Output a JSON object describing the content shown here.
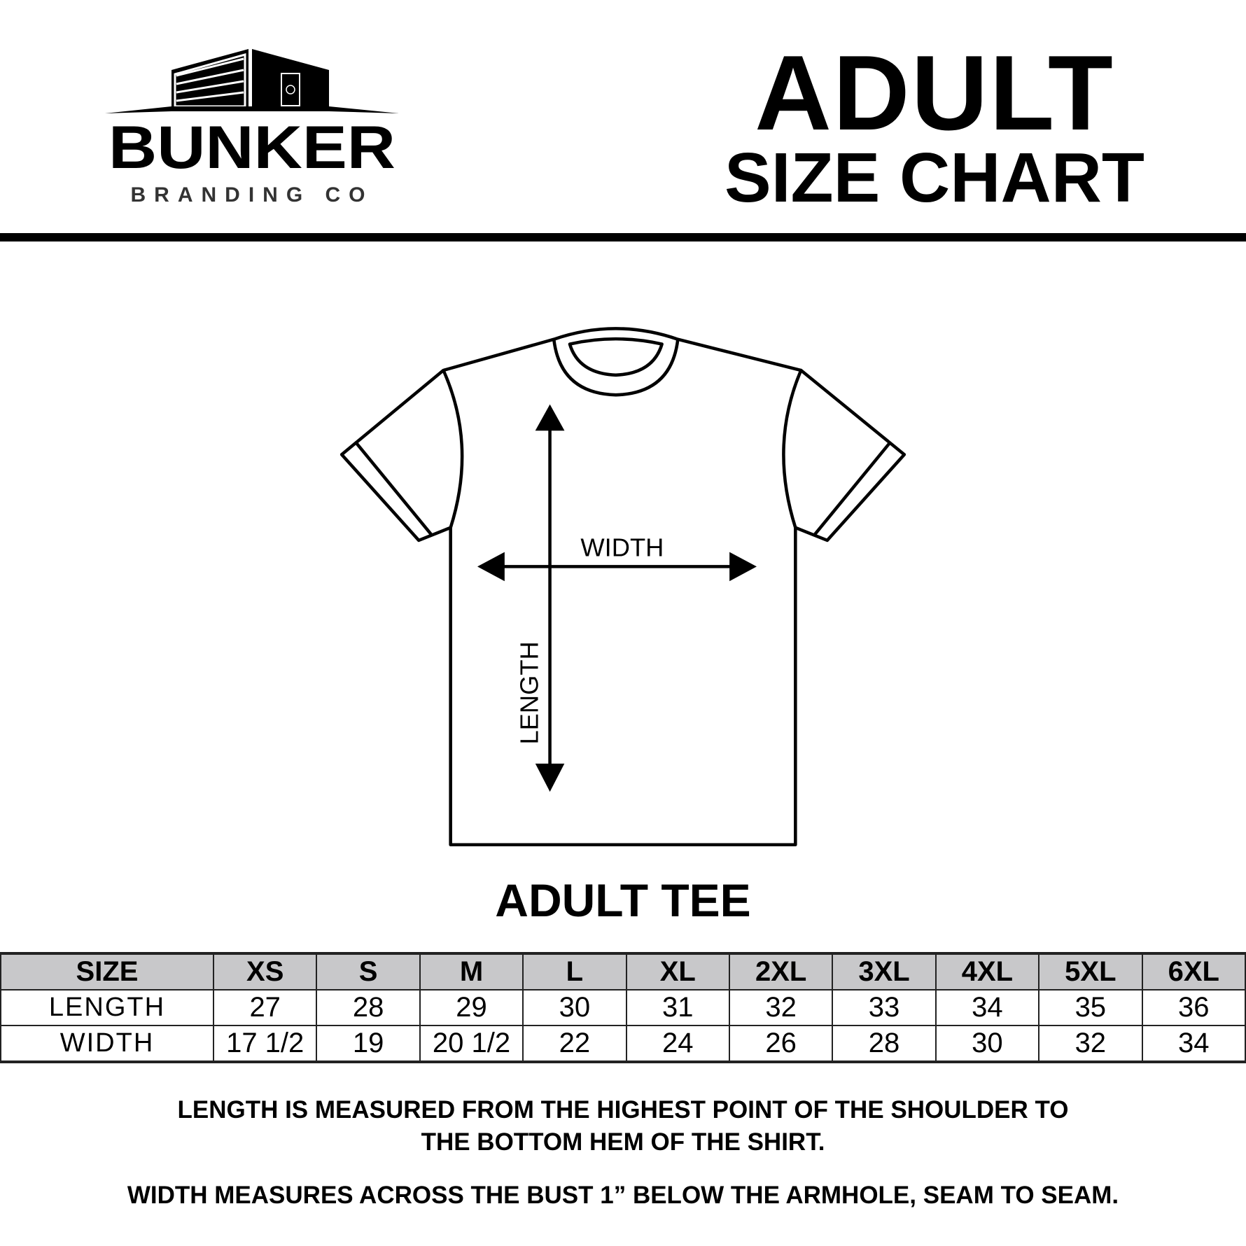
{
  "logo": {
    "brand": "BUNKER",
    "sub": "BRANDING CO"
  },
  "header": {
    "title": "ADULT",
    "subtitle": "SIZE CHART"
  },
  "diagram": {
    "width_label": "WIDTH",
    "length_label": "LENGTH",
    "product": "ADULT TEE"
  },
  "table": {
    "headers": [
      "SIZE",
      "XS",
      "S",
      "M",
      "L",
      "XL",
      "2XL",
      "3XL",
      "4XL",
      "5XL",
      "6XL"
    ],
    "rows": [
      [
        "LENGTH",
        "27",
        "28",
        "29",
        "30",
        "31",
        "32",
        "33",
        "34",
        "35",
        "36"
      ],
      [
        "WIDTH",
        "17 1/2",
        "19",
        "20 1/2",
        "22",
        "24",
        "26",
        "28",
        "30",
        "32",
        "34"
      ]
    ]
  },
  "notes": {
    "line1": "LENGTH IS MEASURED FROM THE HIGHEST POINT OF THE SHOULDER TO",
    "line2": "THE BOTTOM HEM OF THE SHIRT.",
    "line3": "WIDTH MEASURES ACROSS THE BUST 1” BELOW THE ARMHOLE, SEAM TO SEAM."
  },
  "colors": {
    "header_bg": "#c8c8ca",
    "ink": "#000000"
  }
}
